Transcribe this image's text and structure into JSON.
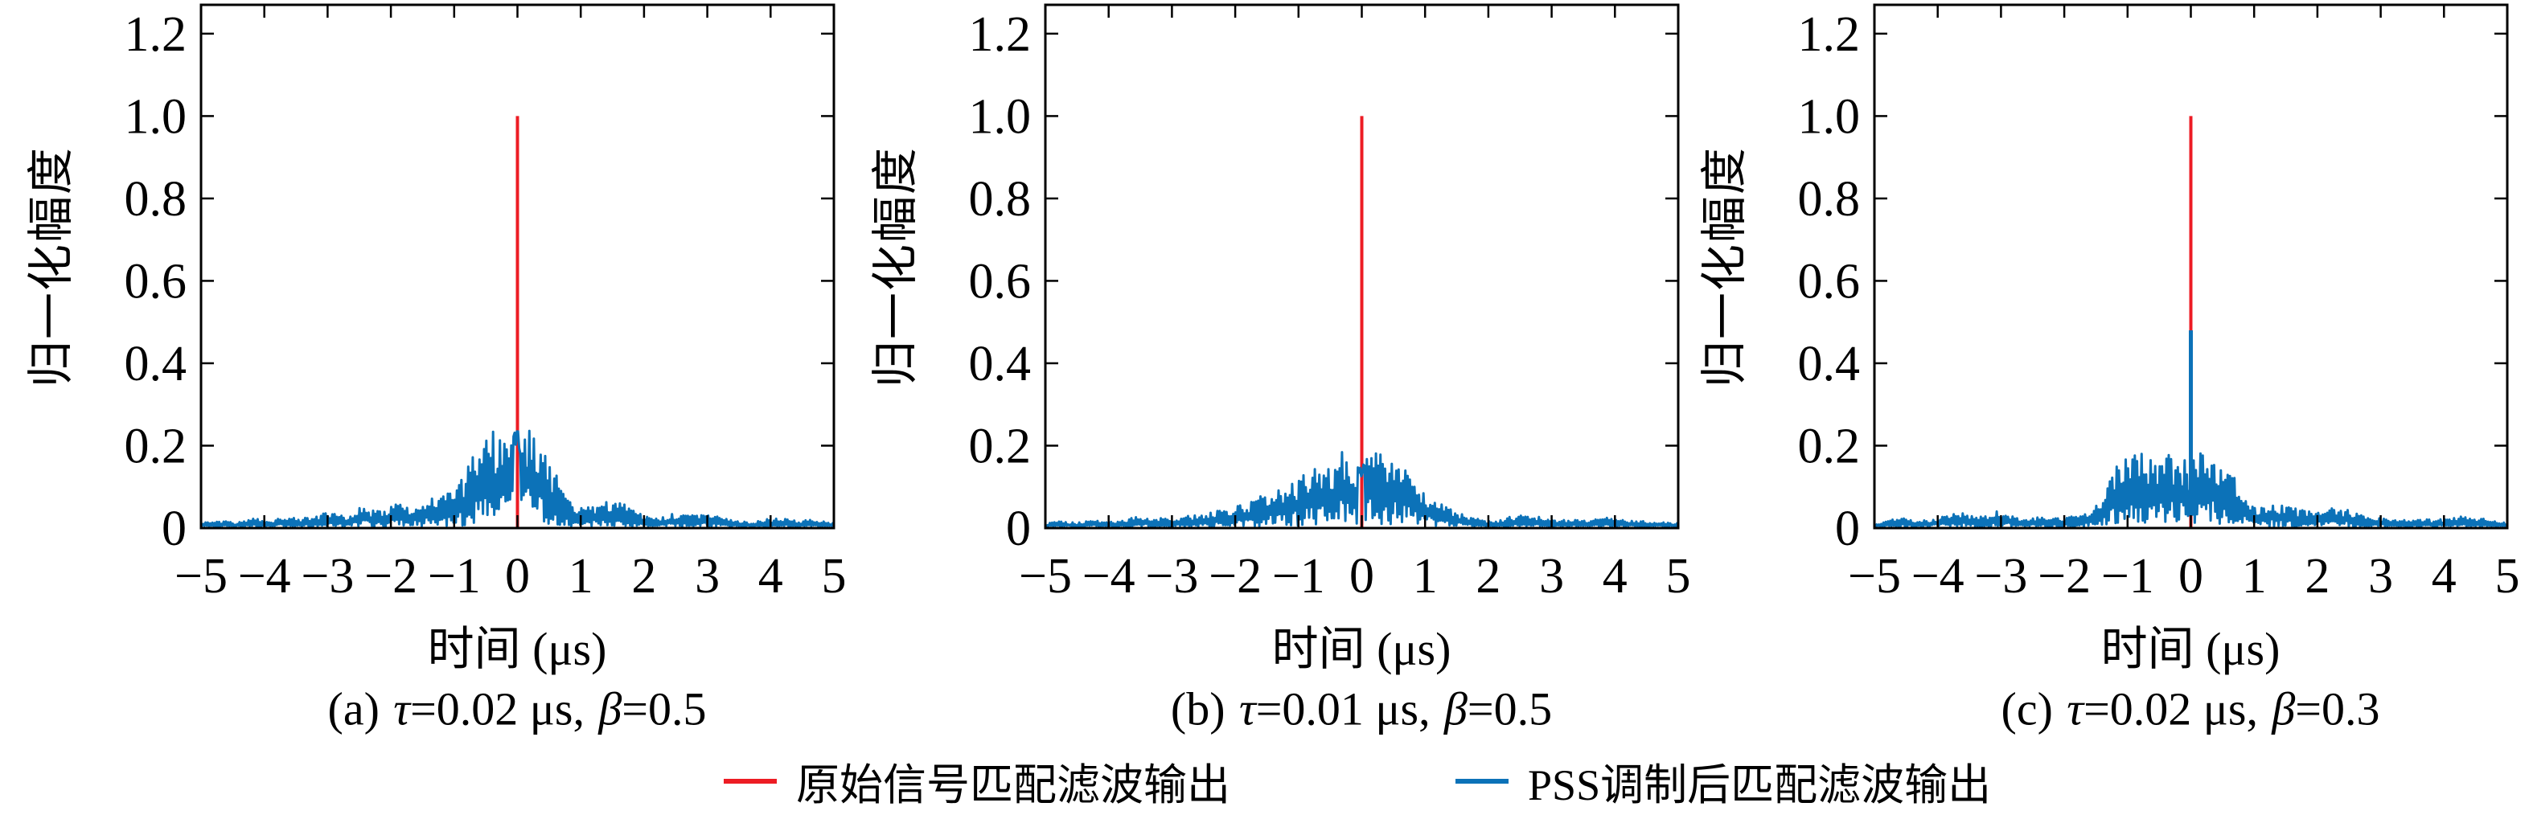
{
  "figure": {
    "background": "#ffffff",
    "colors": {
      "red": "#ed1c24",
      "blue": "#0c72b8",
      "axis": "#000000"
    },
    "legend": {
      "items": [
        {
          "swatch_color_key": "red",
          "label": "原始信号匹配滤波输出"
        },
        {
          "swatch_color_key": "blue",
          "label": "PSS调制后匹配滤波输出"
        }
      ]
    },
    "subplots": [
      {
        "id": "a",
        "ylabel": "归一化幅度",
        "xlabel": "时间 (μs)",
        "caption": {
          "index": "(a)",
          "tau_symbol": "τ",
          "tau_value": "=0.02 μs,",
          "beta_symbol": "β",
          "beta_value": "=0.5"
        },
        "xtick_labels": [
          "−5",
          "−4",
          "−3",
          "−2",
          "−1",
          "0",
          "1",
          "2",
          "3",
          "4",
          "5"
        ],
        "xtick_values": [
          -5,
          -4,
          -3,
          -2,
          -1,
          0,
          1,
          2,
          3,
          4,
          5
        ],
        "ytick_labels": [
          "0",
          "0.2",
          "0.4",
          "0.6",
          "0.8",
          "1.0",
          "1.2"
        ],
        "ytick_values": [
          0,
          0.2,
          0.4,
          0.6,
          0.8,
          1.0,
          1.2
        ],
        "xlim": [
          -5,
          5
        ],
        "ylim": [
          0,
          1.27
        ]
      },
      {
        "id": "b",
        "ylabel": "归一化幅度",
        "xlabel": "时间 (μs)",
        "caption": {
          "index": "(b)",
          "tau_symbol": "τ",
          "tau_value": "=0.01 μs,",
          "beta_symbol": "β",
          "beta_value": "=0.5"
        },
        "xtick_labels": [
          "−5",
          "−4",
          "−3",
          "−2",
          "−1",
          "0",
          "1",
          "2",
          "3",
          "4",
          "5"
        ],
        "xtick_values": [
          -5,
          -4,
          -3,
          -2,
          -1,
          0,
          1,
          2,
          3,
          4,
          5
        ],
        "ytick_labels": [
          "0",
          "0.2",
          "0.4",
          "0.6",
          "0.8",
          "1.0",
          "1.2"
        ],
        "ytick_values": [
          0,
          0.2,
          0.4,
          0.6,
          0.8,
          1.0,
          1.2
        ],
        "xlim": [
          -5,
          5
        ],
        "ylim": [
          0,
          1.27
        ]
      },
      {
        "id": "c",
        "ylabel": "归一化幅度",
        "xlabel": "时间 (μs)",
        "caption": {
          "index": "(c)",
          "tau_symbol": "τ",
          "tau_value": "=0.02 μs,",
          "beta_symbol": "β",
          "beta_value": "=0.3"
        },
        "xtick_labels": [
          "−5",
          "−4",
          "−3",
          "−2",
          "−1",
          "0",
          "1",
          "2",
          "3",
          "4",
          "5"
        ],
        "xtick_values": [
          -5,
          -4,
          -3,
          -2,
          -1,
          0,
          1,
          2,
          3,
          4,
          5
        ],
        "ytick_labels": [
          "0",
          "0.2",
          "0.4",
          "0.6",
          "0.8",
          "1.0",
          "1.2"
        ],
        "ytick_values": [
          0,
          0.2,
          0.4,
          0.6,
          0.8,
          1.0,
          1.2
        ],
        "xlim": [
          -5,
          5
        ],
        "ylim": [
          0,
          1.27
        ]
      }
    ]
  },
  "chart_data": [
    {
      "type": "line",
      "panel": "(a)",
      "title": "(a) τ=0.02 μs, β=0.5",
      "xlabel": "时间 (μs)",
      "ylabel": "归一化幅度",
      "xlim": [
        -5,
        5
      ],
      "ylim": [
        0,
        1.27
      ],
      "xticks": [
        -5,
        -4,
        -3,
        -2,
        -1,
        0,
        1,
        2,
        3,
        4,
        5
      ],
      "yticks": [
        0,
        0.2,
        0.4,
        0.6,
        0.8,
        1.0,
        1.2
      ],
      "grid": false,
      "legend_position": "below-figure",
      "series": [
        {
          "name": "原始信号匹配滤波输出",
          "color": "#ed1c24",
          "kind": "impulse",
          "points": [
            [
              0,
              1.0
            ]
          ]
        },
        {
          "name": "PSS调制后匹配滤波输出",
          "color": "#0c72b8",
          "kind": "noise",
          "peak": 0.27,
          "seed": 12345,
          "force_center": true,
          "spikes": [],
          "envelope": [
            [
              -5,
              0.012
            ],
            [
              -4.8,
              0.016
            ],
            [
              -4.6,
              0.02
            ],
            [
              -4.45,
              0.012
            ],
            [
              -4.15,
              0.024
            ],
            [
              -3.95,
              0.014
            ],
            [
              -3.7,
              0.03
            ],
            [
              -3.45,
              0.022
            ],
            [
              -3.15,
              0.032
            ],
            [
              -2.95,
              0.04
            ],
            [
              -2.7,
              0.03
            ],
            [
              -2.45,
              0.055
            ],
            [
              -2.25,
              0.04
            ],
            [
              -2.05,
              0.052
            ],
            [
              -1.85,
              0.062
            ],
            [
              -1.65,
              0.05
            ],
            [
              -1.5,
              0.06
            ],
            [
              -1.35,
              0.08
            ],
            [
              -1.15,
              0.1
            ],
            [
              -1.0,
              0.08
            ],
            [
              -0.85,
              0.13
            ],
            [
              -0.7,
              0.19
            ],
            [
              -0.55,
              0.21
            ],
            [
              -0.42,
              0.25
            ],
            [
              -0.3,
              0.22
            ],
            [
              -0.18,
              0.24
            ],
            [
              -0.06,
              0.26
            ],
            [
              0.06,
              0.22
            ],
            [
              0.18,
              0.27
            ],
            [
              0.3,
              0.23
            ],
            [
              0.42,
              0.2
            ],
            [
              0.55,
              0.15
            ],
            [
              0.7,
              0.1
            ],
            [
              0.85,
              0.06
            ],
            [
              1.0,
              0.05
            ],
            [
              1.2,
              0.055
            ],
            [
              1.4,
              0.07
            ],
            [
              1.6,
              0.065
            ],
            [
              1.8,
              0.05
            ],
            [
              2.0,
              0.03
            ],
            [
              2.2,
              0.025
            ],
            [
              2.45,
              0.035
            ],
            [
              2.7,
              0.03
            ],
            [
              2.95,
              0.038
            ],
            [
              3.2,
              0.028
            ],
            [
              3.45,
              0.018
            ],
            [
              3.7,
              0.015
            ],
            [
              3.95,
              0.022
            ],
            [
              4.2,
              0.024
            ],
            [
              4.45,
              0.016
            ],
            [
              4.65,
              0.022
            ],
            [
              4.85,
              0.016
            ],
            [
              5,
              0.012
            ]
          ]
        }
      ]
    },
    {
      "type": "line",
      "panel": "(b)",
      "title": "(b) τ=0.01 μs, β=0.5",
      "xlabel": "时间 (μs)",
      "ylabel": "归一化幅度",
      "xlim": [
        -5,
        5
      ],
      "ylim": [
        0,
        1.27
      ],
      "xticks": [
        -5,
        -4,
        -3,
        -2,
        -1,
        0,
        1,
        2,
        3,
        4,
        5
      ],
      "yticks": [
        0,
        0.2,
        0.4,
        0.6,
        0.8,
        1.0,
        1.2
      ],
      "grid": false,
      "legend_position": "below-figure",
      "series": [
        {
          "name": "原始信号匹配滤波输出",
          "color": "#ed1c24",
          "kind": "impulse",
          "points": [
            [
              0,
              1.0
            ]
          ]
        },
        {
          "name": "PSS调制后匹配滤波输出",
          "color": "#0c72b8",
          "kind": "noise",
          "peak": 0.205,
          "seed": 67890,
          "force_center": true,
          "spikes": [],
          "envelope": [
            [
              -5,
              0.012
            ],
            [
              -4.75,
              0.018
            ],
            [
              -4.5,
              0.012
            ],
            [
              -4.25,
              0.022
            ],
            [
              -4.0,
              0.016
            ],
            [
              -3.75,
              0.02
            ],
            [
              -3.5,
              0.03
            ],
            [
              -3.25,
              0.026
            ],
            [
              -3.0,
              0.02
            ],
            [
              -2.75,
              0.032
            ],
            [
              -2.5,
              0.03
            ],
            [
              -2.3,
              0.045
            ],
            [
              -2.1,
              0.04
            ],
            [
              -1.95,
              0.055
            ],
            [
              -1.8,
              0.06
            ],
            [
              -1.65,
              0.075
            ],
            [
              -1.5,
              0.085
            ],
            [
              -1.35,
              0.09
            ],
            [
              -1.2,
              0.11
            ],
            [
              -1.05,
              0.115
            ],
            [
              -0.9,
              0.135
            ],
            [
              -0.75,
              0.15
            ],
            [
              -0.6,
              0.17
            ],
            [
              -0.45,
              0.16
            ],
            [
              -0.3,
              0.2
            ],
            [
              -0.15,
              0.175
            ],
            [
              0,
              0.155
            ],
            [
              0.12,
              0.19
            ],
            [
              0.3,
              0.2
            ],
            [
              0.45,
              0.185
            ],
            [
              0.6,
              0.165
            ],
            [
              0.75,
              0.14
            ],
            [
              0.9,
              0.11
            ],
            [
              1.05,
              0.085
            ],
            [
              1.2,
              0.065
            ],
            [
              1.35,
              0.05
            ],
            [
              1.5,
              0.04
            ],
            [
              1.7,
              0.028
            ],
            [
              1.9,
              0.02
            ],
            [
              2.1,
              0.016
            ],
            [
              2.35,
              0.028
            ],
            [
              2.6,
              0.032
            ],
            [
              2.85,
              0.026
            ],
            [
              3.1,
              0.018
            ],
            [
              3.35,
              0.022
            ],
            [
              3.6,
              0.018
            ],
            [
              3.85,
              0.026
            ],
            [
              4.1,
              0.022
            ],
            [
              4.35,
              0.016
            ],
            [
              4.65,
              0.018
            ],
            [
              5,
              0.012
            ]
          ]
        }
      ]
    },
    {
      "type": "line",
      "panel": "(c)",
      "title": "(c) τ=0.02 μs, β=0.3",
      "xlabel": "时间 (μs)",
      "ylabel": "归一化幅度",
      "xlim": [
        -5,
        5
      ],
      "ylim": [
        0,
        1.27
      ],
      "xticks": [
        -5,
        -4,
        -3,
        -2,
        -1,
        0,
        1,
        2,
        3,
        4,
        5
      ],
      "yticks": [
        0,
        0.2,
        0.4,
        0.6,
        0.8,
        1.0,
        1.2
      ],
      "grid": false,
      "legend_position": "below-figure",
      "series": [
        {
          "name": "原始信号匹配滤波输出",
          "color": "#ed1c24",
          "kind": "impulse",
          "points": [
            [
              0,
              1.0
            ]
          ]
        },
        {
          "name": "PSS调制后匹配滤波输出",
          "color": "#0c72b8",
          "kind": "noise",
          "peak": 0.48,
          "seed": 24680,
          "force_center": false,
          "spikes": [
            {
              "x": 0,
              "amplitude": 0.48
            }
          ],
          "envelope": [
            [
              -5,
              0.012
            ],
            [
              -4.75,
              0.02
            ],
            [
              -4.55,
              0.028
            ],
            [
              -4.35,
              0.016
            ],
            [
              -4.1,
              0.022
            ],
            [
              -3.9,
              0.03
            ],
            [
              -3.65,
              0.04
            ],
            [
              -3.45,
              0.028
            ],
            [
              -3.2,
              0.035
            ],
            [
              -3.0,
              0.045
            ],
            [
              -2.8,
              0.03
            ],
            [
              -2.6,
              0.02
            ],
            [
              -2.4,
              0.03
            ],
            [
              -2.2,
              0.024
            ],
            [
              -2.0,
              0.026
            ],
            [
              -1.8,
              0.03
            ],
            [
              -1.6,
              0.045
            ],
            [
              -1.45,
              0.07
            ],
            [
              -1.3,
              0.12
            ],
            [
              -1.15,
              0.17
            ],
            [
              -1.0,
              0.18
            ],
            [
              -0.85,
              0.185
            ],
            [
              -0.7,
              0.19
            ],
            [
              -0.55,
              0.17
            ],
            [
              -0.4,
              0.18
            ],
            [
              -0.25,
              0.185
            ],
            [
              -0.1,
              0.17
            ],
            [
              0,
              0.16
            ],
            [
              0.1,
              0.2
            ],
            [
              0.25,
              0.19
            ],
            [
              0.4,
              0.17
            ],
            [
              0.55,
              0.15
            ],
            [
              0.7,
              0.12
            ],
            [
              0.85,
              0.08
            ],
            [
              1.0,
              0.055
            ],
            [
              1.15,
              0.05
            ],
            [
              1.3,
              0.06
            ],
            [
              1.5,
              0.055
            ],
            [
              1.7,
              0.045
            ],
            [
              1.9,
              0.04
            ],
            [
              2.1,
              0.05
            ],
            [
              2.3,
              0.048
            ],
            [
              2.5,
              0.045
            ],
            [
              2.7,
              0.032
            ],
            [
              2.9,
              0.028
            ],
            [
              3.1,
              0.024
            ],
            [
              3.3,
              0.02
            ],
            [
              3.55,
              0.024
            ],
            [
              3.8,
              0.02
            ],
            [
              4.05,
              0.022
            ],
            [
              4.3,
              0.03
            ],
            [
              4.55,
              0.026
            ],
            [
              4.8,
              0.018
            ],
            [
              5,
              0.012
            ]
          ]
        }
      ]
    }
  ]
}
